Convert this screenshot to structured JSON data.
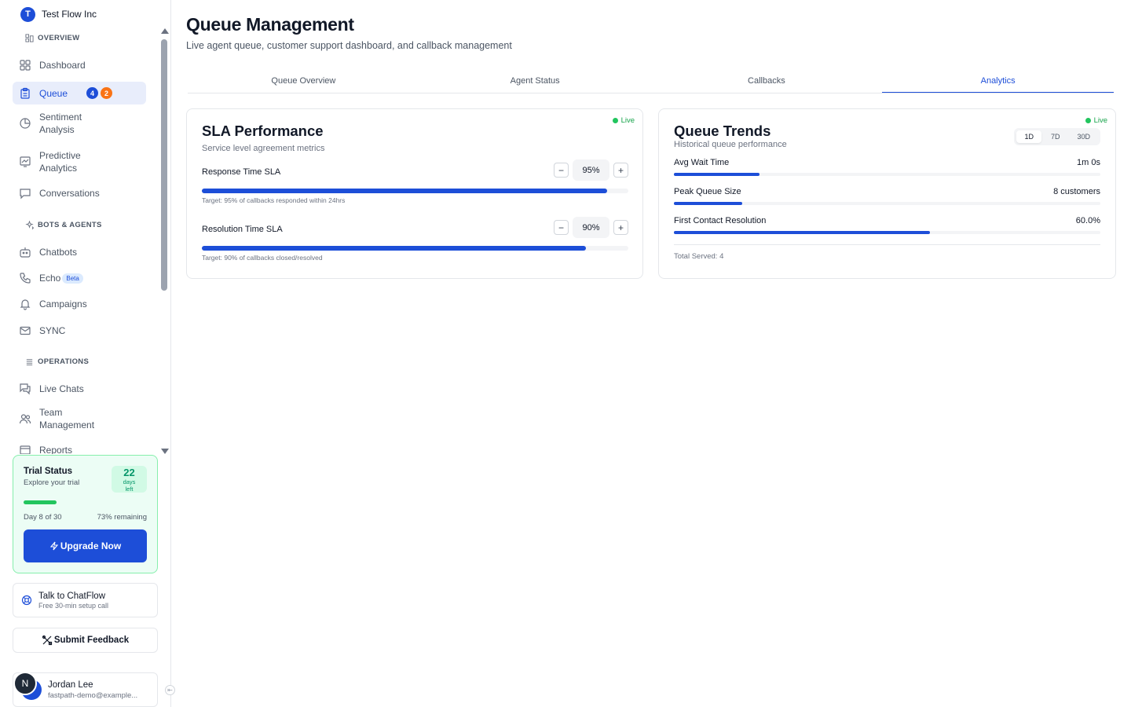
{
  "org": {
    "initial": "T",
    "name": "Test Flow Inc"
  },
  "sidebar": {
    "sections": [
      {
        "title": "OVERVIEW"
      },
      {
        "title": "BOTS & AGENTS"
      },
      {
        "title": "OPERATIONS"
      }
    ],
    "items": {
      "dashboard": "Dashboard",
      "queue": "Queue",
      "queue_badge_1": "4",
      "queue_badge_2": "2",
      "sentiment_1": "Sentiment",
      "sentiment_2": "Analysis",
      "predictive_1": "Predictive",
      "predictive_2": "Analytics",
      "conversations": "Conversations",
      "chatbots": "Chatbots",
      "echo": "Echo",
      "echo_badge": "Beta",
      "campaigns": "Campaigns",
      "sync": "SYNC",
      "live_chats": "Live Chats",
      "team_1": "Team",
      "team_2": "Management",
      "reports": "Reports"
    }
  },
  "trial": {
    "title": "Trial Status",
    "subtitle": "Explore your trial",
    "days": "22",
    "days_label_1": "days",
    "days_label_2": "left",
    "progress_percent": 27,
    "day_text": "Day 8 of 30",
    "remaining_text": "73% remaining",
    "upgrade_label": "Upgrade Now"
  },
  "talk": {
    "title": "Talk to ChatFlow",
    "subtitle": "Free 30-min setup call"
  },
  "feedback_label": "Submit Feedback",
  "user": {
    "avatar_initial": "N",
    "name": "Jordan Lee",
    "email": "fastpath-demo@example..."
  },
  "header": {
    "title": "Queue Management",
    "subtitle": "Live agent queue, customer support dashboard, and callback management"
  },
  "tabs": [
    "Queue Overview",
    "Agent Status",
    "Callbacks",
    "Analytics"
  ],
  "active_tab": "Analytics",
  "sla_card": {
    "live": "Live",
    "title": "SLA Performance",
    "subtitle": "Service level agreement metrics",
    "rows": [
      {
        "label": "Response Time SLA",
        "value": "95%",
        "percent": 95,
        "target": "Target: 95% of callbacks responded within 24hrs"
      },
      {
        "label": "Resolution Time SLA",
        "value": "90%",
        "percent": 90,
        "target": "Target: 90% of callbacks closed/resolved"
      }
    ],
    "minus": "−",
    "plus": "+"
  },
  "trends_card": {
    "live": "Live",
    "title": "Queue Trends",
    "subtitle": "Historical queue performance",
    "ranges": [
      "1D",
      "7D",
      "30D"
    ],
    "active_range": "1D",
    "metrics": [
      {
        "label": "Avg Wait Time",
        "value": "1m 0s",
        "percent": 20
      },
      {
        "label": "Peak Queue Size",
        "value": "8 customers",
        "percent": 16
      },
      {
        "label": "First Contact Resolution",
        "value": "60.0%",
        "percent": 60
      }
    ],
    "total": "Total Served: 4"
  },
  "colors": {
    "accent": "#1d4ed8",
    "success": "#22c55e",
    "badge_orange": "#f97316"
  }
}
